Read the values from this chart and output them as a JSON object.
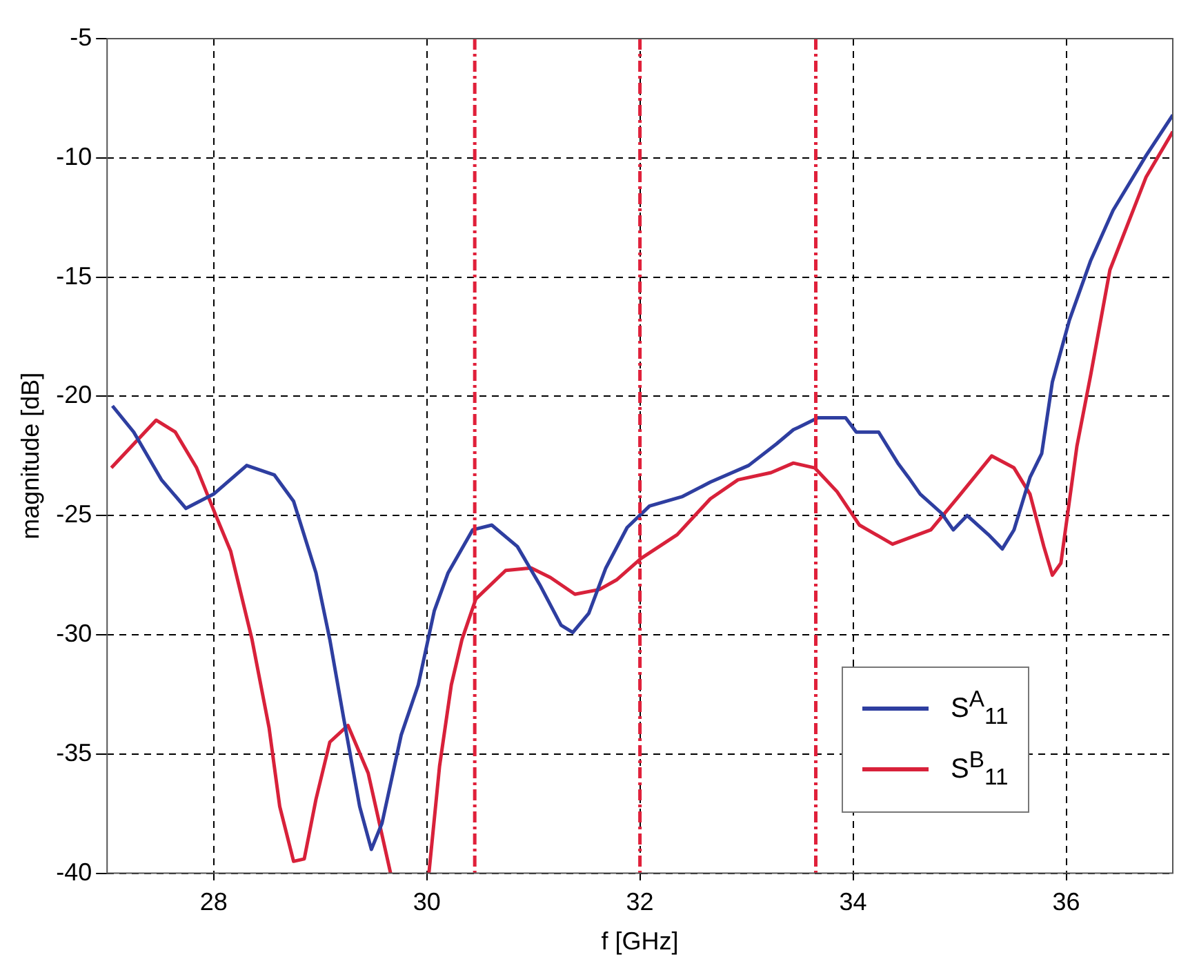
{
  "chart_data": {
    "type": "line",
    "xlabel": "f [GHz]",
    "ylabel": "magnitude [dB]",
    "xlim": [
      27,
      37
    ],
    "xticks": [
      28,
      30,
      32,
      34,
      36
    ],
    "ylim": [
      -40,
      -5
    ],
    "yticks": [
      -40,
      -35,
      -30,
      -25,
      -20,
      -15,
      -10,
      -5
    ],
    "grid": true,
    "legend": "bottom right",
    "marker": "none",
    "line_style": "solid",
    "series": [
      {
        "name": "S$^{A}$$_{11}$",
        "color": "#2e3ea0",
        "x": [
          27.05,
          27.25,
          27.51,
          27.74,
          28.0,
          28.31,
          28.57,
          28.75,
          28.96,
          29.09,
          29.22,
          29.37,
          29.48,
          29.58,
          29.76,
          29.92,
          30.07,
          30.2,
          30.43,
          30.61,
          30.85,
          31.06,
          31.26,
          31.37,
          31.52,
          31.68,
          31.88,
          32.09,
          32.4,
          32.66,
          33.02,
          33.28,
          33.44,
          33.49,
          33.67,
          33.93,
          34.03,
          34.24,
          34.42,
          34.52,
          34.63,
          34.83,
          34.94,
          35.07,
          35.27,
          35.4,
          35.51,
          35.66,
          35.77,
          35.87,
          36.03,
          36.23,
          36.44,
          36.75,
          37.0
        ],
        "values": [
          -20.4,
          -21.5,
          -23.5,
          -24.7,
          -24.1,
          -22.9,
          -23.3,
          -24.4,
          -27.4,
          -30.2,
          -33.5,
          -37.2,
          -39.0,
          -37.9,
          -34.2,
          -32.1,
          -29.0,
          -27.4,
          -25.6,
          -25.4,
          -26.3,
          -27.9,
          -29.6,
          -29.9,
          -29.1,
          -27.2,
          -25.5,
          -24.6,
          -24.2,
          -23.6,
          -22.9,
          -22.0,
          -21.4,
          -21.3,
          -20.9,
          -20.9,
          -21.5,
          -21.5,
          -22.8,
          -23.4,
          -24.1,
          -24.9,
          -25.6,
          -25.0,
          -25.8,
          -26.4,
          -25.6,
          -23.4,
          -22.4,
          -19.4,
          -16.8,
          -14.3,
          -12.2,
          -9.9,
          -8.2
        ]
      },
      {
        "name": "S$^{B}$$_{11}$",
        "color": "#d8213a",
        "x": [
          27.04,
          27.46,
          27.64,
          27.84,
          28.03,
          28.16,
          28.36,
          28.52,
          28.62,
          28.75,
          28.85,
          28.96,
          29.09,
          29.26,
          29.45,
          29.66,
          29.8,
          30.02,
          30.12,
          30.23,
          30.33,
          30.46,
          30.74,
          30.98,
          31.16,
          31.39,
          31.62,
          31.78,
          32.01,
          32.35,
          32.66,
          32.92,
          33.23,
          33.44,
          33.64,
          33.85,
          34.06,
          34.37,
          34.73,
          34.99,
          35.3,
          35.51,
          35.66,
          35.79,
          35.87,
          35.95,
          36.1,
          36.23,
          36.41,
          36.75,
          37.0
        ],
        "values": [
          -23.0,
          -21.0,
          -21.5,
          -23.0,
          -25.1,
          -26.5,
          -30.2,
          -33.9,
          -37.2,
          -39.5,
          -39.4,
          -36.9,
          -34.5,
          -33.8,
          -35.8,
          -40.0,
          null,
          -40.0,
          -35.5,
          -32.1,
          -30.2,
          -28.5,
          -27.3,
          -27.2,
          -27.6,
          -28.3,
          -28.1,
          -27.7,
          -26.8,
          -25.8,
          -24.3,
          -23.5,
          -23.2,
          -22.8,
          -23.0,
          -24.0,
          -25.4,
          -26.2,
          -25.6,
          -24.2,
          -22.5,
          -23.0,
          -24.1,
          -26.3,
          -27.5,
          -27.0,
          -22.1,
          -19.1,
          -14.7,
          -10.8,
          -8.9
        ]
      }
    ],
    "ref_lines": [
      {
        "axis": "x",
        "value": 30.45,
        "color": "#e0203a",
        "line_style": "dashdot"
      },
      {
        "axis": "x",
        "value": 32.0,
        "color": "#e0203a",
        "line_style": "dashdot"
      },
      {
        "axis": "x",
        "value": 33.65,
        "color": "#e0203a",
        "line_style": "dashdot"
      }
    ]
  }
}
